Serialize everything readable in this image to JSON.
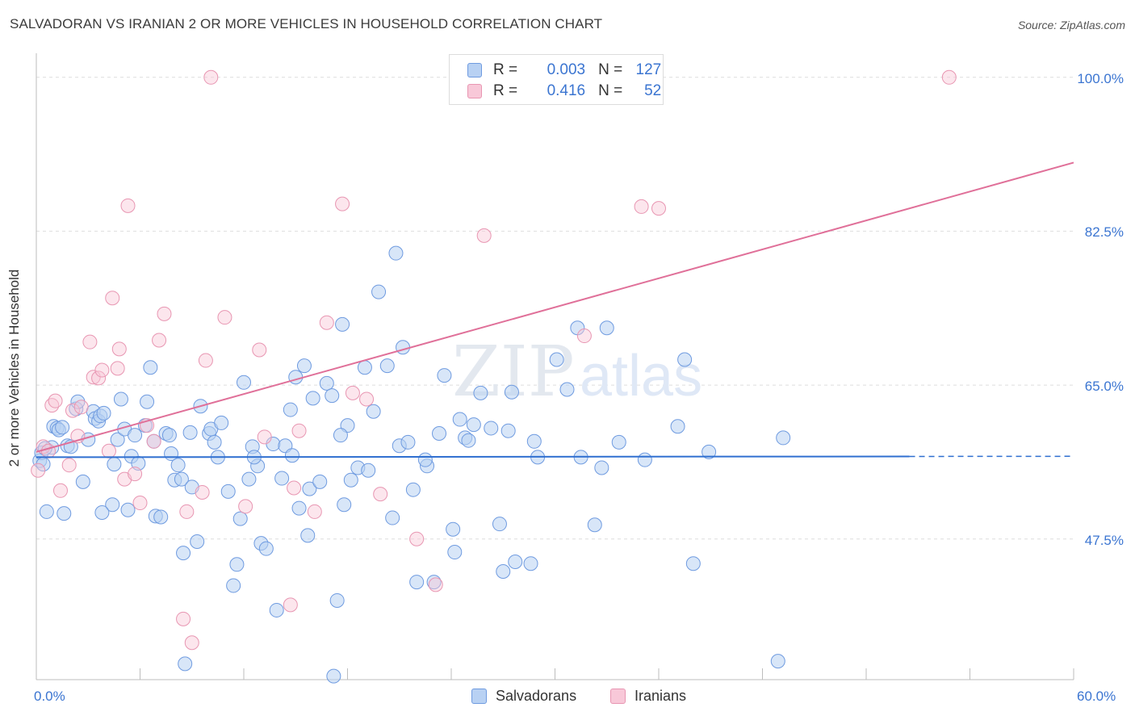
{
  "header": {
    "title": "SALVADORAN VS IRANIAN 2 OR MORE VEHICLES IN HOUSEHOLD CORRELATION CHART",
    "source": "Source: ZipAtlas.com"
  },
  "legend": {
    "r_key": "R =",
    "n_key": "N =",
    "rows": [
      {
        "r": "0.003",
        "n": "127"
      },
      {
        "r": "0.416",
        "n": "52"
      }
    ]
  },
  "watermark": {
    "zip": "ZIP",
    "atlas": "atlas"
  },
  "colors": {
    "blue_fill": "#b8d1f3",
    "blue_stroke": "#6f9be0",
    "blue_line": "#2f6fd0",
    "pink_fill": "#f8c8d8",
    "pink_stroke": "#e896b2",
    "pink_line": "#e07099",
    "axis_label": "#3b75d1",
    "grid": "#dedede"
  },
  "chart_data": {
    "type": "scatter",
    "title": "SALVADORAN VS IRANIAN 2 OR MORE VEHICLES IN HOUSEHOLD CORRELATION CHART",
    "xlabel": "",
    "ylabel": "2 or more Vehicles in Household",
    "xlim": [
      0,
      60
    ],
    "ylim": [
      31.5,
      102
    ],
    "x_tick_labels": [
      "0.0%",
      "60.0%"
    ],
    "y_ticks": [
      47.5,
      65.0,
      82.5,
      100.0
    ],
    "y_tick_labels": [
      "47.5%",
      "65.0%",
      "82.5%",
      "100.0%"
    ],
    "series": [
      {
        "name": "Salvadorans",
        "R": 0.003,
        "N": 127,
        "trend": {
          "x0": 0,
          "y0": 56.8,
          "x1": 60,
          "y1": 56.9,
          "solid_until": 50.5
        },
        "points": [
          [
            0.2,
            56.4
          ],
          [
            0.3,
            57.3
          ],
          [
            0.6,
            50.6
          ],
          [
            0.9,
            57.9
          ],
          [
            1.0,
            60.3
          ],
          [
            1.2,
            60.1
          ],
          [
            1.3,
            59.9
          ],
          [
            1.6,
            50.4
          ],
          [
            1.8,
            58.1
          ],
          [
            2.3,
            62.3
          ],
          [
            2.4,
            63.1
          ],
          [
            2.7,
            54.0
          ],
          [
            3.0,
            58.8
          ],
          [
            3.3,
            62.0
          ],
          [
            3.4,
            61.2
          ],
          [
            3.6,
            60.9
          ],
          [
            3.7,
            61.5
          ],
          [
            3.9,
            61.8
          ],
          [
            4.4,
            51.4
          ],
          [
            4.5,
            56.0
          ],
          [
            4.7,
            58.8
          ],
          [
            4.9,
            63.4
          ],
          [
            5.1,
            60.0
          ],
          [
            5.3,
            50.8
          ],
          [
            5.5,
            56.9
          ],
          [
            5.7,
            59.3
          ],
          [
            5.9,
            56.1
          ],
          [
            6.3,
            60.4
          ],
          [
            6.4,
            63.1
          ],
          [
            6.6,
            67.0
          ],
          [
            6.8,
            58.6
          ],
          [
            6.9,
            50.1
          ],
          [
            7.2,
            50.0
          ],
          [
            7.5,
            59.5
          ],
          [
            7.7,
            59.3
          ],
          [
            7.8,
            57.2
          ],
          [
            8.0,
            54.2
          ],
          [
            8.4,
            54.3
          ],
          [
            8.5,
            45.9
          ],
          [
            8.6,
            33.3
          ],
          [
            8.9,
            59.6
          ],
          [
            9.0,
            53.4
          ],
          [
            9.3,
            47.2
          ],
          [
            9.5,
            62.6
          ],
          [
            10.0,
            59.5
          ],
          [
            10.1,
            60.0
          ],
          [
            10.3,
            58.5
          ],
          [
            10.5,
            56.8
          ],
          [
            10.7,
            60.7
          ],
          [
            11.1,
            52.9
          ],
          [
            11.4,
            42.2
          ],
          [
            11.6,
            44.6
          ],
          [
            11.8,
            49.8
          ],
          [
            12.0,
            65.3
          ],
          [
            12.3,
            54.3
          ],
          [
            12.5,
            58.0
          ],
          [
            12.8,
            55.8
          ],
          [
            13.0,
            47.0
          ],
          [
            13.3,
            46.4
          ],
          [
            13.7,
            58.3
          ],
          [
            13.9,
            39.4
          ],
          [
            14.2,
            54.4
          ],
          [
            14.4,
            58.1
          ],
          [
            14.7,
            62.2
          ],
          [
            15.0,
            65.9
          ],
          [
            15.2,
            51.0
          ],
          [
            15.5,
            67.2
          ],
          [
            15.7,
            47.9
          ],
          [
            15.8,
            53.2
          ],
          [
            16.0,
            63.5
          ],
          [
            16.4,
            54.0
          ],
          [
            16.8,
            65.2
          ],
          [
            17.1,
            63.8
          ],
          [
            17.4,
            40.5
          ],
          [
            17.2,
            31.9
          ],
          [
            17.7,
            71.9
          ],
          [
            17.8,
            51.4
          ],
          [
            18.0,
            60.4
          ],
          [
            18.2,
            54.2
          ],
          [
            18.6,
            55.6
          ],
          [
            19.0,
            67.0
          ],
          [
            19.2,
            55.3
          ],
          [
            19.5,
            62.0
          ],
          [
            19.8,
            75.6
          ],
          [
            20.3,
            67.2
          ],
          [
            20.6,
            49.9
          ],
          [
            20.8,
            80.0
          ],
          [
            21.0,
            58.1
          ],
          [
            21.2,
            69.3
          ],
          [
            21.5,
            58.5
          ],
          [
            21.8,
            53.1
          ],
          [
            22.0,
            42.6
          ],
          [
            22.6,
            55.8
          ],
          [
            23.0,
            42.6
          ],
          [
            23.3,
            59.5
          ],
          [
            23.6,
            66.1
          ],
          [
            24.1,
            48.6
          ],
          [
            24.2,
            46.0
          ],
          [
            24.5,
            61.1
          ],
          [
            24.8,
            59.0
          ],
          [
            25.0,
            58.7
          ],
          [
            25.3,
            60.5
          ],
          [
            25.7,
            64.1
          ],
          [
            26.3,
            60.1
          ],
          [
            26.8,
            49.2
          ],
          [
            27.0,
            43.8
          ],
          [
            27.3,
            59.8
          ],
          [
            27.5,
            64.2
          ],
          [
            27.7,
            44.9
          ],
          [
            28.6,
            44.7
          ],
          [
            28.8,
            58.6
          ],
          [
            29.0,
            56.8
          ],
          [
            30.1,
            67.9
          ],
          [
            30.7,
            64.5
          ],
          [
            31.3,
            71.5
          ],
          [
            31.5,
            56.8
          ],
          [
            32.3,
            49.1
          ],
          [
            32.7,
            55.6
          ],
          [
            33.0,
            71.5
          ],
          [
            33.7,
            58.5
          ],
          [
            35.2,
            56.5
          ],
          [
            37.1,
            60.3
          ],
          [
            37.5,
            67.9
          ],
          [
            38.0,
            44.7
          ],
          [
            38.9,
            57.4
          ],
          [
            42.9,
            33.6
          ],
          [
            43.2,
            59.0
          ],
          [
            0.4,
            56.0
          ],
          [
            1.5,
            60.2
          ],
          [
            0.5,
            57.8
          ],
          [
            2.0,
            58.0
          ],
          [
            14.8,
            57.0
          ],
          [
            22.5,
            56.5
          ],
          [
            12.6,
            56.8
          ],
          [
            3.8,
            50.5
          ],
          [
            8.2,
            55.9
          ],
          [
            17.6,
            59.3
          ]
        ]
      },
      {
        "name": "Iranians",
        "R": 0.416,
        "N": 52,
        "trend": {
          "x0": 0,
          "y0": 57.4,
          "x1": 60,
          "y1": 90.3
        },
        "points": [
          [
            0.1,
            55.3
          ],
          [
            0.4,
            58.0
          ],
          [
            0.7,
            57.5
          ],
          [
            0.9,
            62.7
          ],
          [
            1.1,
            63.2
          ],
          [
            1.4,
            53.0
          ],
          [
            1.9,
            55.9
          ],
          [
            2.1,
            62.1
          ],
          [
            2.4,
            59.2
          ],
          [
            2.6,
            62.5
          ],
          [
            3.1,
            69.9
          ],
          [
            3.3,
            65.9
          ],
          [
            3.6,
            65.8
          ],
          [
            3.8,
            66.7
          ],
          [
            4.2,
            57.5
          ],
          [
            4.4,
            74.9
          ],
          [
            4.7,
            66.9
          ],
          [
            4.8,
            69.1
          ],
          [
            5.1,
            54.3
          ],
          [
            5.3,
            85.4
          ],
          [
            5.7,
            54.9
          ],
          [
            6.0,
            51.6
          ],
          [
            6.4,
            60.4
          ],
          [
            6.8,
            58.6
          ],
          [
            7.1,
            70.1
          ],
          [
            7.4,
            73.1
          ],
          [
            8.5,
            38.4
          ],
          [
            8.7,
            50.6
          ],
          [
            9.0,
            35.7
          ],
          [
            9.6,
            52.8
          ],
          [
            9.8,
            67.8
          ],
          [
            10.1,
            100.0
          ],
          [
            10.9,
            72.7
          ],
          [
            12.1,
            51.2
          ],
          [
            12.9,
            69.0
          ],
          [
            13.2,
            59.1
          ],
          [
            14.7,
            40.0
          ],
          [
            14.9,
            53.3
          ],
          [
            15.2,
            59.8
          ],
          [
            16.1,
            50.6
          ],
          [
            16.8,
            72.1
          ],
          [
            17.7,
            85.6
          ],
          [
            18.3,
            64.1
          ],
          [
            19.1,
            63.4
          ],
          [
            19.9,
            52.6
          ],
          [
            22.0,
            47.5
          ],
          [
            25.9,
            82.0
          ],
          [
            31.7,
            70.6
          ],
          [
            35.0,
            85.3
          ],
          [
            36.0,
            85.1
          ],
          [
            52.8,
            100.0
          ],
          [
            23.1,
            42.3
          ]
        ]
      }
    ]
  },
  "bottom_legend": {
    "items": [
      {
        "label": "Salvadorans"
      },
      {
        "label": "Iranians"
      }
    ]
  }
}
